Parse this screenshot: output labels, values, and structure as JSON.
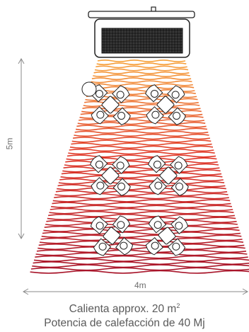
{
  "dimensions": {
    "height_label": "5m",
    "width_label": "4m"
  },
  "caption": {
    "line1_prefix": "Calienta approx. 20 m",
    "line1_superscript": "2",
    "line2": "Potencia de calefacción de 40 Mj"
  },
  "colors": {
    "heat_top": "#f7a23a",
    "heat_mid": "#e0392a",
    "heat_bottom": "#a7152a",
    "outline": "#222222",
    "dimension_line": "#8a8a8a"
  }
}
